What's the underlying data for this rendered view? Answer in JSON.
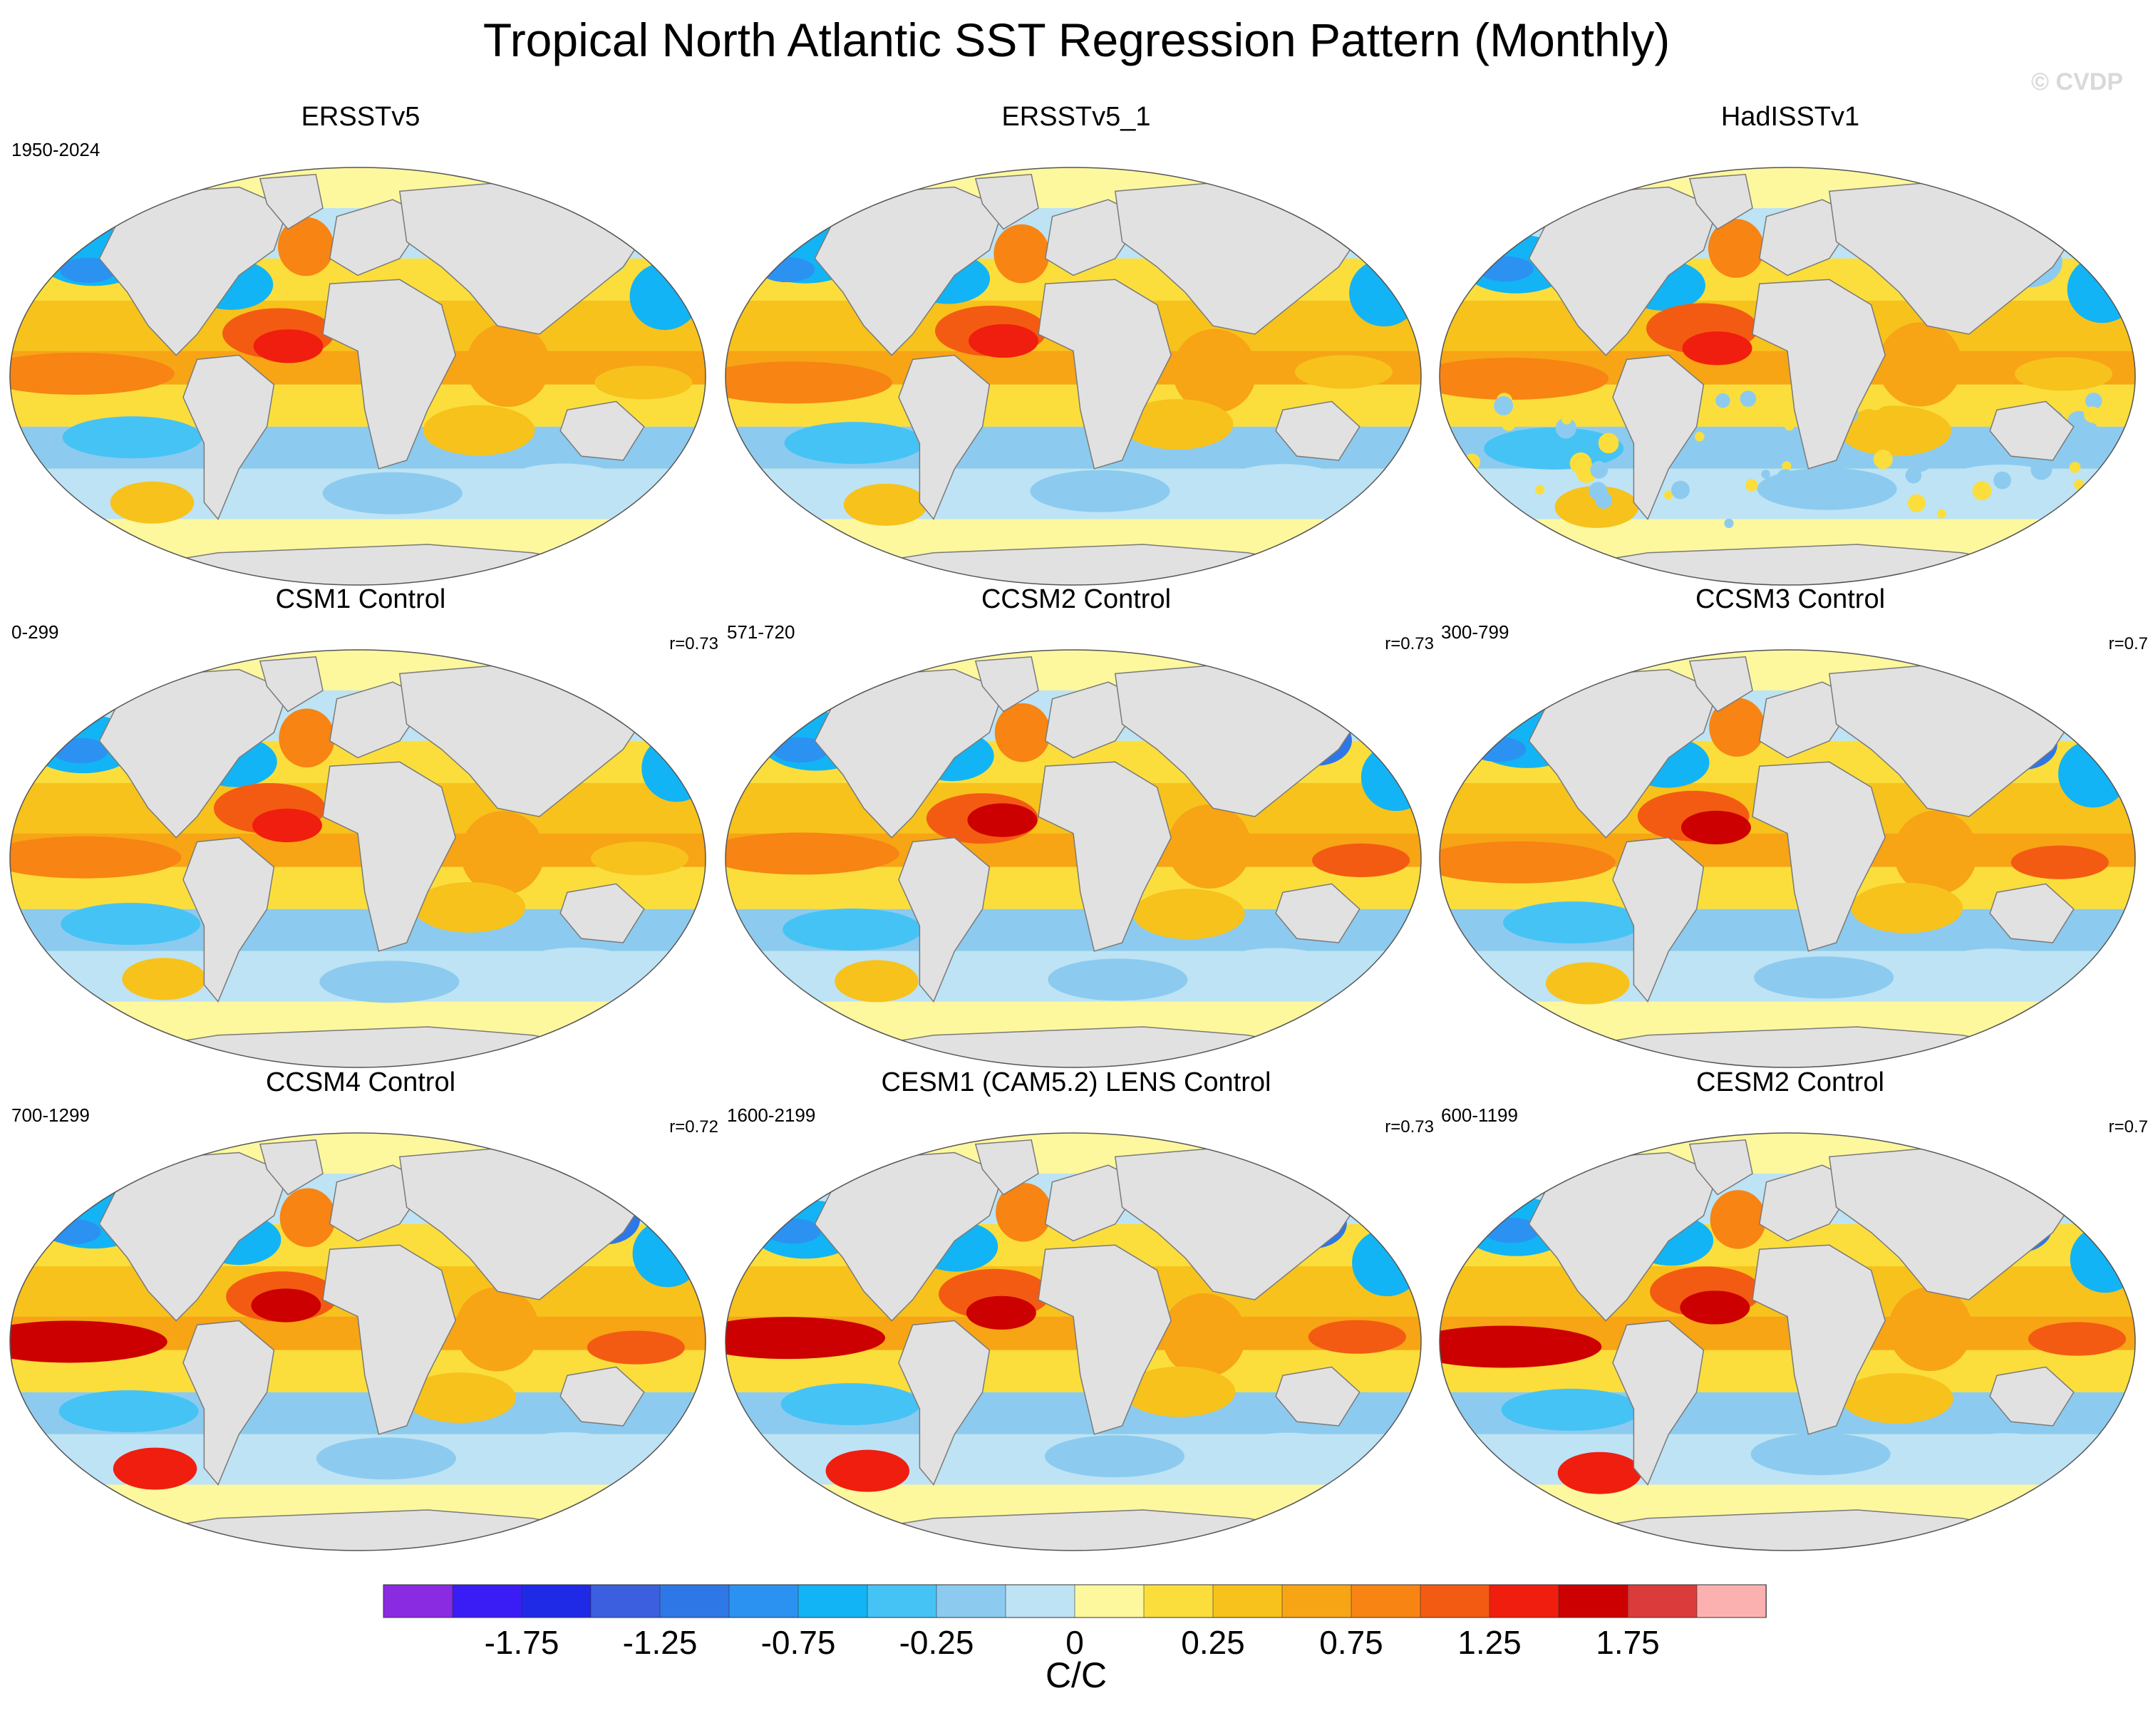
{
  "title": "Tropical North Atlantic SST Regression Pattern (Monthly)",
  "watermark": "© CVDP",
  "panels": [
    {
      "name": "ERSSTv5",
      "period": "1950-2024",
      "r": "",
      "style": "obs",
      "seed": 1
    },
    {
      "name": "ERSSTv5_1",
      "period": "",
      "r": "",
      "style": "obs",
      "seed": 2
    },
    {
      "name": "HadISSTv1",
      "period": "",
      "r": "",
      "style": "obs-noisy",
      "seed": 3
    },
    {
      "name": "CSM1 Control",
      "period": "0-299",
      "r": "r=0.73",
      "style": "weak",
      "seed": 4
    },
    {
      "name": "CCSM2 Control",
      "period": "571-720",
      "r": "r=0.73",
      "style": "medium",
      "seed": 5
    },
    {
      "name": "CCSM3 Control",
      "period": "300-799",
      "r": "r=0.7",
      "style": "medium",
      "seed": 6
    },
    {
      "name": "CCSM4 Control",
      "period": "700-1299",
      "r": "r=0.72",
      "style": "strong",
      "seed": 7
    },
    {
      "name": "CESM1 (CAM5.2) LENS Control",
      "period": "1600-2199",
      "r": "r=0.73",
      "style": "strong",
      "seed": 8
    },
    {
      "name": "CESM2 Control",
      "period": "600-1199",
      "r": "r=0.7",
      "style": "strong",
      "seed": 9
    }
  ],
  "colorbar": {
    "colors": [
      "#8a2be2",
      "#3a1cf5",
      "#1e2ae6",
      "#3c5fe0",
      "#2e77e6",
      "#2b92f2",
      "#12b4f5",
      "#46c3f5",
      "#8ccbef",
      "#bde3f5",
      "#fdf79e",
      "#fbde3c",
      "#f7c21c",
      "#f7a415",
      "#f78413",
      "#f45b12",
      "#f01e0f",
      "#cc0000",
      "#dc3b3b",
      "#fcb1b1"
    ],
    "tick_labels": [
      "-1.75",
      "-1.25",
      "-0.75",
      "-0.25",
      "0",
      "0.25",
      "0.75",
      "1.25",
      "1.75"
    ],
    "units": "C/C"
  }
}
